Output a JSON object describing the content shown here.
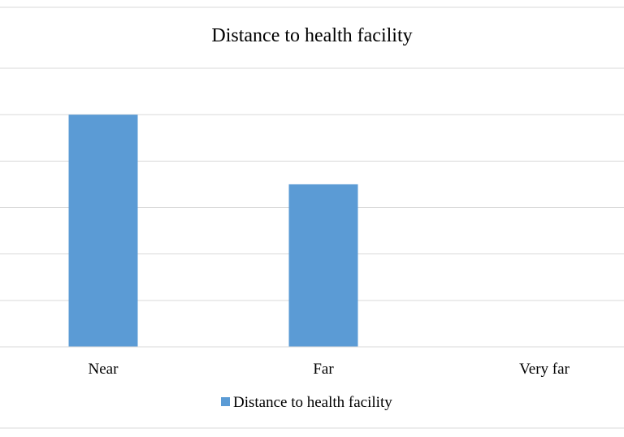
{
  "chart_data": {
    "type": "bar",
    "title": "Distance to health facility",
    "categories": [
      "Near",
      "Far",
      "Very far"
    ],
    "series": [
      {
        "name": "Distance to health facility",
        "values": [
          50,
          35,
          0
        ],
        "color": "#5b9bd5"
      }
    ],
    "ylim": [
      0,
      60
    ],
    "gridlines": [
      0,
      10,
      20,
      30,
      40,
      50,
      60
    ],
    "grid": true,
    "legend": "bottom"
  }
}
